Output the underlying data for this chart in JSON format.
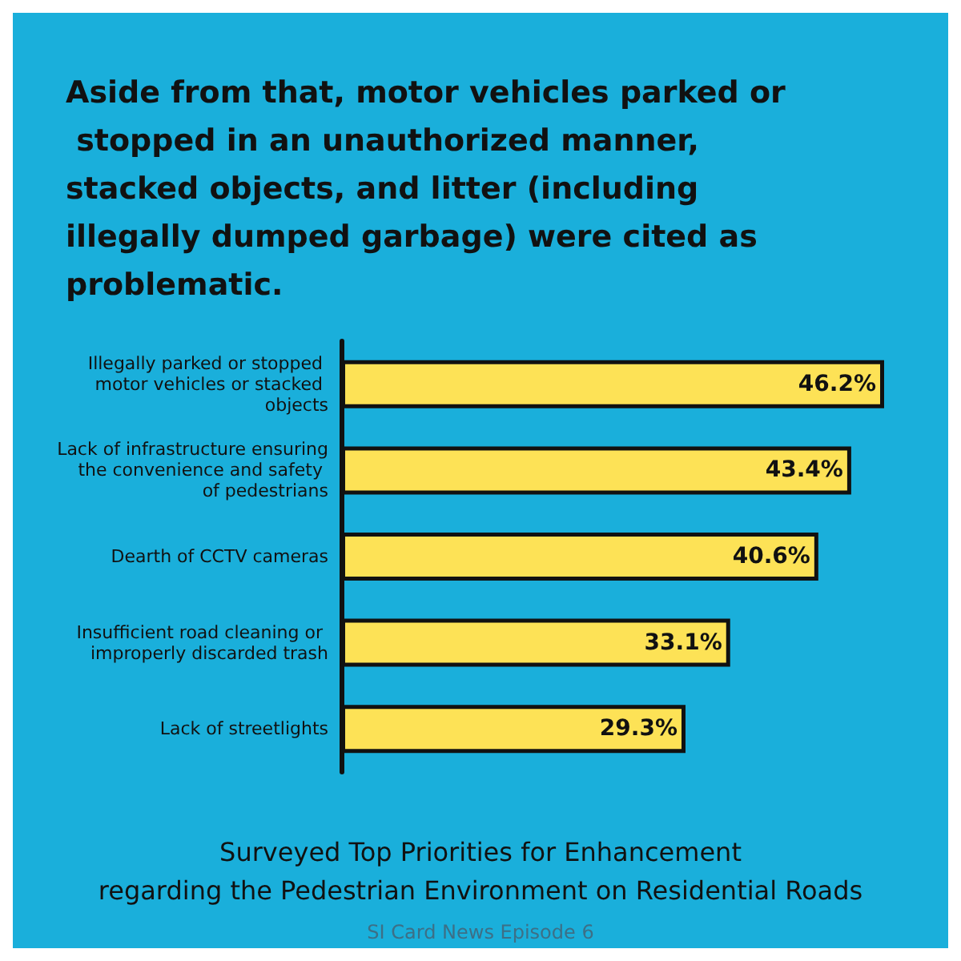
{
  "chart_data": {
    "type": "bar",
    "orientation": "horizontal",
    "title": "Aside from that, motor vehicles parked or stopped in an unauthorized manner, stacked objects, and litter (including illegally dumped garbage) were cited as problematic.",
    "subtitle": "Surveyed Top Priorities for Enhancement\nregarding the Pedestrian Environment on Residential Roads",
    "annotations": [
      "SI Card News Episode 6"
    ],
    "categories": [
      "Illegally parked or stopped motor vehicles or stacked objects",
      "Lack of infrastructure ensuring the convenience and safety of pedestrians",
      "Dearth of CCTV cameras",
      "Insufficient road cleaning or improperly discarded trash",
      "Lack of streetlights"
    ],
    "values": [
      46.2,
      43.4,
      40.6,
      33.1,
      29.3
    ],
    "value_labels": [
      "46.2%",
      "43.4%",
      "40.6%",
      "33.1%",
      "29.3%"
    ],
    "color": "#fde256"
  }
}
